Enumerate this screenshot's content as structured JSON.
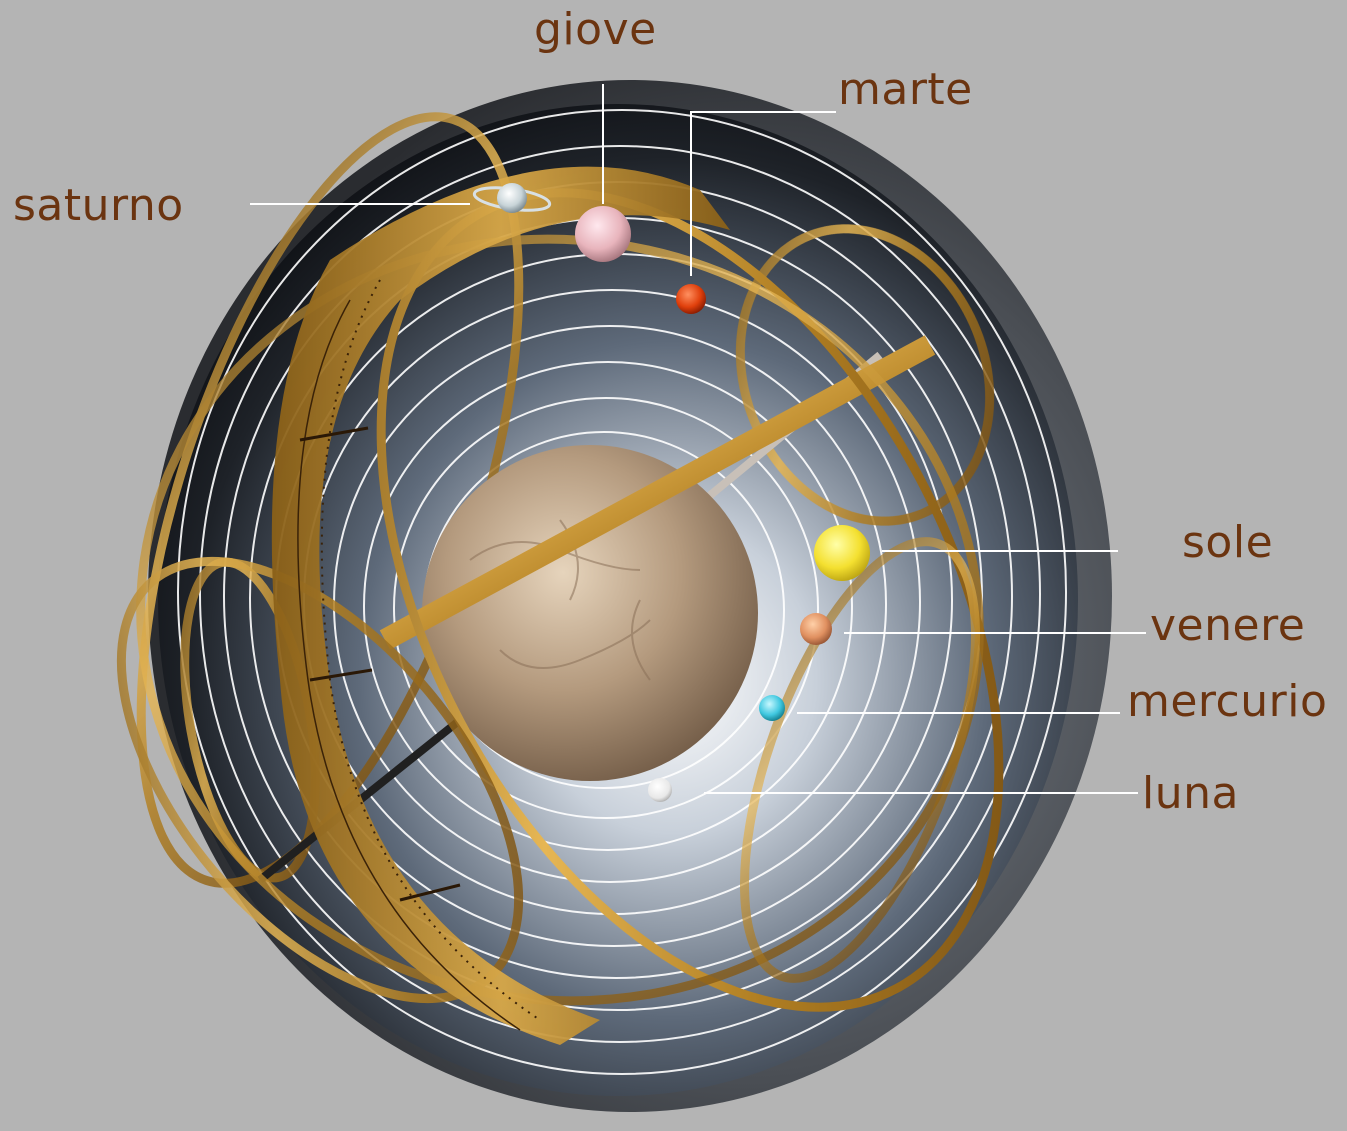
{
  "labels": {
    "giove": "giove",
    "marte": "marte",
    "saturno": "saturno",
    "sole": "sole",
    "venere": "venere",
    "mercurio": "mercurio",
    "luna": "luna"
  },
  "colors": {
    "background": "#b4b4b4",
    "label_text": "#6b3410",
    "leader_line": "#ffffff",
    "gold_band": "#c9962e",
    "sphere_dark": "#2c3038"
  },
  "bodies": [
    {
      "name": "earth",
      "color": "#b49a7e"
    },
    {
      "name": "saturno",
      "color": "#c8d4d8"
    },
    {
      "name": "giove",
      "color": "#e8b4bc"
    },
    {
      "name": "marte",
      "color": "#e0400c"
    },
    {
      "name": "sole",
      "color": "#f4e030"
    },
    {
      "name": "venere",
      "color": "#e09060"
    },
    {
      "name": "mercurio",
      "color": "#40c8e0"
    },
    {
      "name": "luna",
      "color": "#f0f0f0"
    }
  ]
}
